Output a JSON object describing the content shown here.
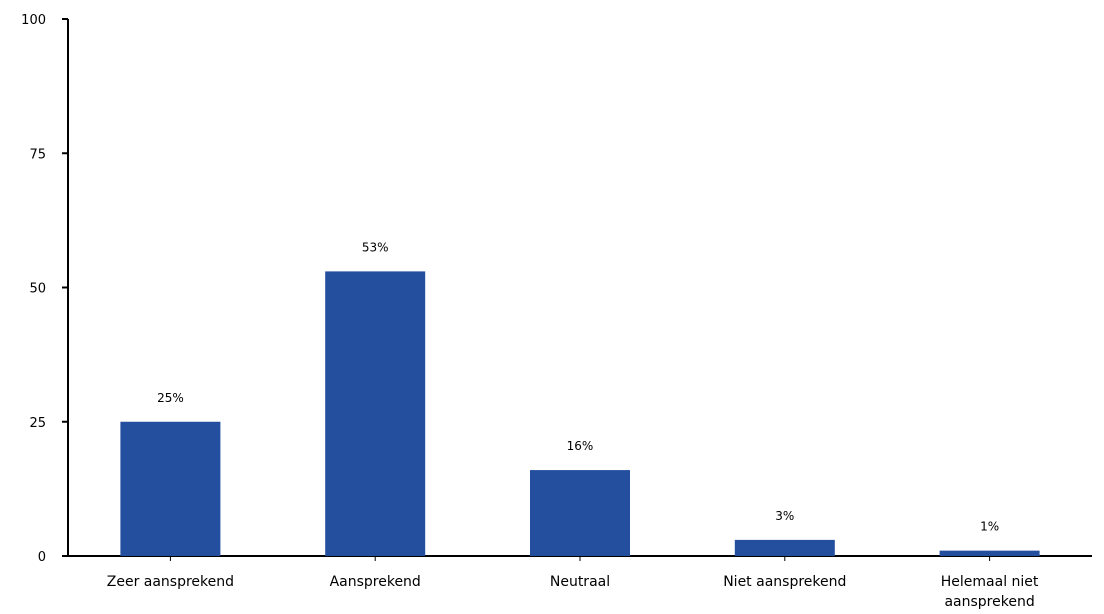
{
  "chart_data": {
    "type": "bar",
    "title": "",
    "xlabel": "",
    "ylabel": "",
    "ylim": [
      0,
      100
    ],
    "yticks": [
      "100",
      "75",
      "50",
      "25",
      "0"
    ],
    "categories": [
      [
        "Zeer aansprekend"
      ],
      [
        "Aansprekend"
      ],
      [
        "Neutraal"
      ],
      [
        "Niet aansprekend"
      ],
      [
        "Helemaal niet",
        "aansprekend"
      ]
    ],
    "values": [
      25,
      53,
      16,
      3,
      1
    ],
    "data_labels": [
      "25%",
      "53%",
      "16%",
      "3%",
      "1%"
    ],
    "bar_color": "#244f9e",
    "axis_color": "#000000",
    "grid": false,
    "legend": "none"
  }
}
